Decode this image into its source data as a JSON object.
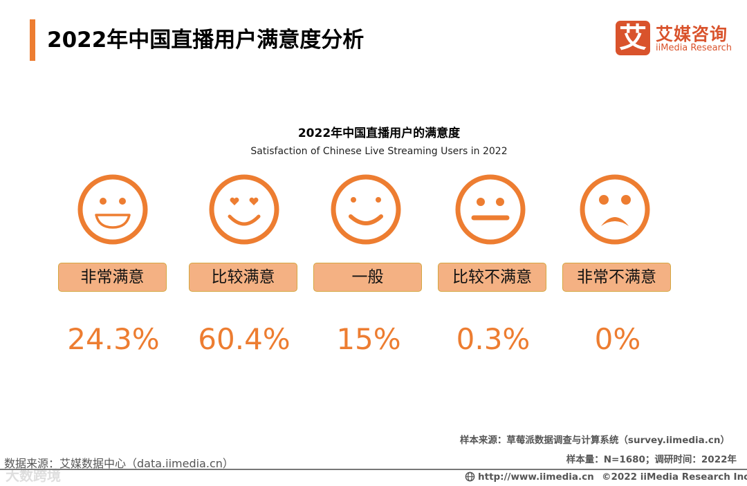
{
  "header": {
    "title": "2022年中国直播用户满意度分析",
    "logo_mark": "艾",
    "logo_cn": "艾媒咨询",
    "logo_en": "iiMedia Research"
  },
  "chart_data": {
    "type": "table",
    "title": "2022年中国直播用户的满意度",
    "subtitle": "Satisfaction of Chinese Live Streaming Users in 2022",
    "categories": [
      "非常满意",
      "比较满意",
      "一般",
      "比较不满意",
      "非常不满意"
    ],
    "values": [
      24.3,
      60.4,
      15,
      0.3,
      0
    ],
    "value_labels": [
      "24.3%",
      "60.4%",
      "15%",
      "0.3%",
      "0%"
    ],
    "icons": [
      "big-grin-face-icon",
      "heart-eyes-face-icon",
      "smile-face-icon",
      "neutral-face-icon",
      "frown-face-icon"
    ],
    "colors": {
      "accent": "#ED7D31",
      "label_fill": "#F4B183"
    }
  },
  "footer": {
    "source_survey": "样本来源：草莓派数据调查与计算系统（survey.iimedia.cn）",
    "sample": "样本量：N=1680；调研时间：2022年",
    "data_source": "数据来源：艾媒数据中心（data.iimedia.cn）",
    "url": "http://www.iimedia.cn",
    "copyright": "©2022  iiMedia Research  Inc",
    "watermark": "大数跨境"
  }
}
